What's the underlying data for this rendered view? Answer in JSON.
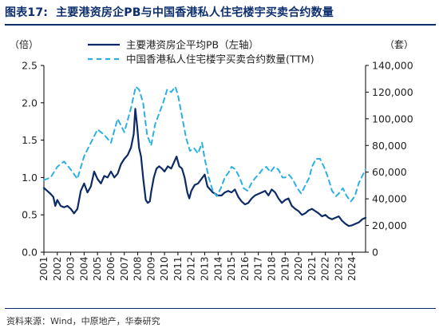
{
  "header": {
    "figure_label": "图表17:",
    "title": "主要港资房企PB与中国香港私人住宅楼宇买卖合约数量"
  },
  "footer": {
    "source": "资料来源：Wind，中原地产，华泰研究"
  },
  "colors": {
    "pb_series": "#0b2a66",
    "contracts_series": "#2bb0e6",
    "title": "#0d2f6e"
  },
  "chart_data": {
    "type": "line",
    "left_unit": "（倍）",
    "right_unit": "（套）",
    "x_range": [
      2001.0,
      2025.0
    ],
    "x_ticks": [
      "2001",
      "2002",
      "2003",
      "2004",
      "2005",
      "2006",
      "2007",
      "2008",
      "2009",
      "2010",
      "2011",
      "2012",
      "2013",
      "2014",
      "2015",
      "2016",
      "2017",
      "2018",
      "2019",
      "2020",
      "2021",
      "2022",
      "2023",
      "2024"
    ],
    "y_left": {
      "range": [
        0,
        2.5
      ],
      "ticks": [
        "0.0",
        "0.5",
        "1.0",
        "1.5",
        "2.0",
        "2.5"
      ]
    },
    "y_right": {
      "range": [
        0,
        140000
      ],
      "ticks": [
        "0",
        "20,000",
        "40,000",
        "60,000",
        "80,000",
        "100,000",
        "120,000",
        "140,000"
      ]
    },
    "grid": false,
    "legend_position": "top-center",
    "series": [
      {
        "name": "主要港资房企平均PB（左轴）",
        "axis": "left",
        "style": "solid",
        "points": [
          [
            2001.0,
            0.86
          ],
          [
            2001.25,
            0.82
          ],
          [
            2001.5,
            0.78
          ],
          [
            2001.7,
            0.74
          ],
          [
            2001.85,
            0.62
          ],
          [
            2002.0,
            0.7
          ],
          [
            2002.25,
            0.62
          ],
          [
            2002.5,
            0.6
          ],
          [
            2002.75,
            0.62
          ],
          [
            2003.0,
            0.58
          ],
          [
            2003.25,
            0.52
          ],
          [
            2003.5,
            0.58
          ],
          [
            2003.75,
            0.82
          ],
          [
            2004.0,
            0.92
          ],
          [
            2004.25,
            0.8
          ],
          [
            2004.5,
            0.88
          ],
          [
            2004.75,
            1.08
          ],
          [
            2005.0,
            0.98
          ],
          [
            2005.25,
            0.92
          ],
          [
            2005.5,
            1.02
          ],
          [
            2005.75,
            1.0
          ],
          [
            2006.0,
            1.08
          ],
          [
            2006.25,
            1.0
          ],
          [
            2006.5,
            1.05
          ],
          [
            2006.75,
            1.18
          ],
          [
            2007.0,
            1.25
          ],
          [
            2007.25,
            1.3
          ],
          [
            2007.5,
            1.4
          ],
          [
            2007.7,
            1.58
          ],
          [
            2007.82,
            1.92
          ],
          [
            2007.95,
            1.7
          ],
          [
            2008.1,
            1.4
          ],
          [
            2008.25,
            1.28
          ],
          [
            2008.4,
            1.0
          ],
          [
            2008.6,
            0.7
          ],
          [
            2008.75,
            0.66
          ],
          [
            2008.9,
            0.68
          ],
          [
            2009.0,
            0.8
          ],
          [
            2009.2,
            1.0
          ],
          [
            2009.4,
            1.12
          ],
          [
            2009.6,
            1.15
          ],
          [
            2009.8,
            1.12
          ],
          [
            2010.0,
            1.08
          ],
          [
            2010.25,
            1.15
          ],
          [
            2010.5,
            1.12
          ],
          [
            2010.75,
            1.22
          ],
          [
            2010.9,
            1.28
          ],
          [
            2011.1,
            1.15
          ],
          [
            2011.3,
            1.12
          ],
          [
            2011.5,
            1.0
          ],
          [
            2011.7,
            0.8
          ],
          [
            2011.85,
            0.72
          ],
          [
            2012.0,
            0.82
          ],
          [
            2012.25,
            0.9
          ],
          [
            2012.5,
            0.92
          ],
          [
            2012.75,
            0.98
          ],
          [
            2013.0,
            1.04
          ],
          [
            2013.2,
            0.88
          ],
          [
            2013.4,
            0.84
          ],
          [
            2013.6,
            0.8
          ],
          [
            2013.8,
            0.78
          ],
          [
            2014.0,
            0.76
          ],
          [
            2014.25,
            0.76
          ],
          [
            2014.5,
            0.8
          ],
          [
            2014.75,
            0.82
          ],
          [
            2015.0,
            0.8
          ],
          [
            2015.25,
            0.84
          ],
          [
            2015.5,
            0.74
          ],
          [
            2015.75,
            0.68
          ],
          [
            2016.0,
            0.64
          ],
          [
            2016.25,
            0.66
          ],
          [
            2016.5,
            0.72
          ],
          [
            2016.75,
            0.76
          ],
          [
            2017.0,
            0.78
          ],
          [
            2017.25,
            0.8
          ],
          [
            2017.5,
            0.82
          ],
          [
            2017.75,
            0.76
          ],
          [
            2018.0,
            0.84
          ],
          [
            2018.25,
            0.8
          ],
          [
            2018.5,
            0.72
          ],
          [
            2018.75,
            0.66
          ],
          [
            2019.0,
            0.7
          ],
          [
            2019.25,
            0.72
          ],
          [
            2019.5,
            0.62
          ],
          [
            2019.75,
            0.58
          ],
          [
            2020.0,
            0.55
          ],
          [
            2020.25,
            0.5
          ],
          [
            2020.5,
            0.52
          ],
          [
            2020.75,
            0.56
          ],
          [
            2021.0,
            0.58
          ],
          [
            2021.25,
            0.55
          ],
          [
            2021.5,
            0.52
          ],
          [
            2021.75,
            0.48
          ],
          [
            2022.0,
            0.5
          ],
          [
            2022.25,
            0.46
          ],
          [
            2022.5,
            0.44
          ],
          [
            2022.75,
            0.46
          ],
          [
            2023.0,
            0.48
          ],
          [
            2023.25,
            0.42
          ],
          [
            2023.5,
            0.38
          ],
          [
            2023.75,
            0.35
          ],
          [
            2024.0,
            0.36
          ],
          [
            2024.25,
            0.38
          ],
          [
            2024.5,
            0.4
          ],
          [
            2024.75,
            0.44
          ],
          [
            2025.0,
            0.46
          ]
        ]
      },
      {
        "name": "中国香港私人住宅楼宇买卖合约数量(TTM)",
        "axis": "right",
        "style": "dashed",
        "points": [
          [
            2001.0,
            54000
          ],
          [
            2001.5,
            56000
          ],
          [
            2002.0,
            64000
          ],
          [
            2002.5,
            68000
          ],
          [
            2003.0,
            62000
          ],
          [
            2003.5,
            55000
          ],
          [
            2004.0,
            72000
          ],
          [
            2004.5,
            82000
          ],
          [
            2005.0,
            92000
          ],
          [
            2005.5,
            88000
          ],
          [
            2006.0,
            82000
          ],
          [
            2006.5,
            100000
          ],
          [
            2006.8,
            94000
          ],
          [
            2007.0,
            90000
          ],
          [
            2007.5,
            108000
          ],
          [
            2007.85,
            124000
          ],
          [
            2008.1,
            122000
          ],
          [
            2008.4,
            112000
          ],
          [
            2008.7,
            88000
          ],
          [
            2009.0,
            80000
          ],
          [
            2009.3,
            96000
          ],
          [
            2009.6,
            104000
          ],
          [
            2009.9,
            112000
          ],
          [
            2010.2,
            122000
          ],
          [
            2010.5,
            120000
          ],
          [
            2010.8,
            124000
          ],
          [
            2011.0,
            118000
          ],
          [
            2011.3,
            102000
          ],
          [
            2011.6,
            86000
          ],
          [
            2011.9,
            76000
          ],
          [
            2012.2,
            78000
          ],
          [
            2012.5,
            74000
          ],
          [
            2012.8,
            82000
          ],
          [
            2013.0,
            70000
          ],
          [
            2013.3,
            56000
          ],
          [
            2013.6,
            46000
          ],
          [
            2013.9,
            42000
          ],
          [
            2014.2,
            48000
          ],
          [
            2014.5,
            56000
          ],
          [
            2014.8,
            60000
          ],
          [
            2015.0,
            64000
          ],
          [
            2015.3,
            62000
          ],
          [
            2015.6,
            56000
          ],
          [
            2015.9,
            48000
          ],
          [
            2016.2,
            46000
          ],
          [
            2016.5,
            52000
          ],
          [
            2016.8,
            56000
          ],
          [
            2017.0,
            58000
          ],
          [
            2017.3,
            62000
          ],
          [
            2017.6,
            64000
          ],
          [
            2017.9,
            60000
          ],
          [
            2018.2,
            64000
          ],
          [
            2018.5,
            62000
          ],
          [
            2018.8,
            56000
          ],
          [
            2019.0,
            56000
          ],
          [
            2019.3,
            58000
          ],
          [
            2019.6,
            54000
          ],
          [
            2019.9,
            48000
          ],
          [
            2020.2,
            44000
          ],
          [
            2020.5,
            50000
          ],
          [
            2020.8,
            56000
          ],
          [
            2021.0,
            64000
          ],
          [
            2021.3,
            70000
          ],
          [
            2021.6,
            70000
          ],
          [
            2021.9,
            64000
          ],
          [
            2022.2,
            56000
          ],
          [
            2022.5,
            46000
          ],
          [
            2022.8,
            42000
          ],
          [
            2023.0,
            44000
          ],
          [
            2023.3,
            48000
          ],
          [
            2023.6,
            42000
          ],
          [
            2023.9,
            38000
          ],
          [
            2024.2,
            42000
          ],
          [
            2024.5,
            52000
          ],
          [
            2024.8,
            58000
          ],
          [
            2025.0,
            62000
          ]
        ]
      }
    ]
  }
}
